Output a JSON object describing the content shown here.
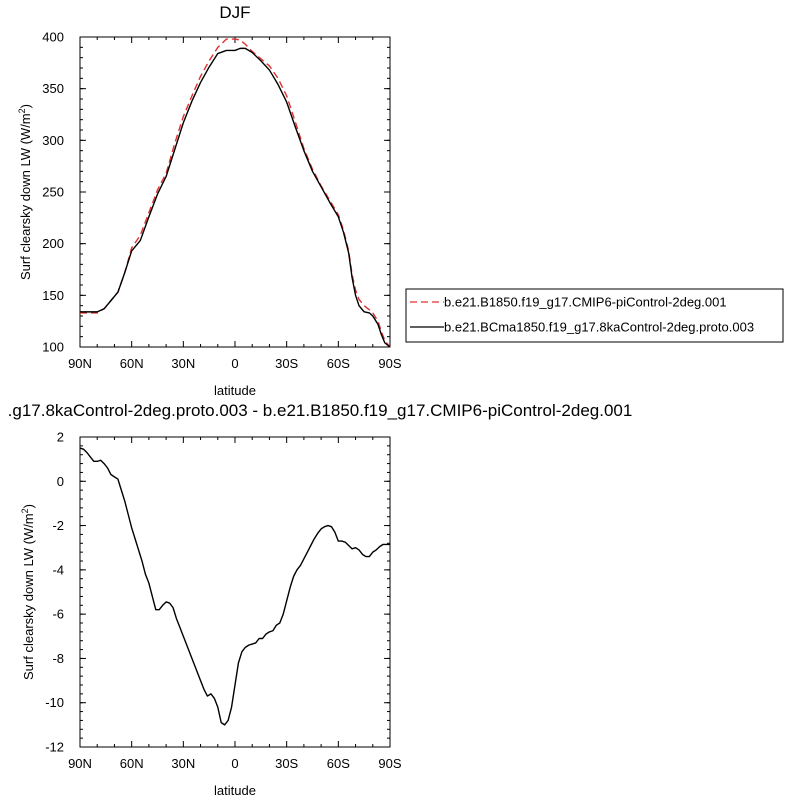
{
  "chart_data": [
    {
      "type": "line",
      "title": "DJF",
      "xlabel": "latitude",
      "ylabel": "Surf clearsky down LW (W/m²)",
      "ylabel_main": "Surf clearsky down LW (W/m",
      "ylabel_sup": "2",
      "ylabel_close": ")",
      "xlim": [
        90,
        -90
      ],
      "ylim": [
        100,
        400
      ],
      "x_ticks": [
        90,
        60,
        30,
        0,
        -30,
        -60,
        -90
      ],
      "x_tick_labels": [
        "90N",
        "60N",
        "30N",
        "0",
        "30S",
        "60S",
        "90S"
      ],
      "y_ticks": [
        100,
        150,
        200,
        250,
        300,
        350,
        400
      ],
      "y_tick_labels": [
        "100",
        "150",
        "200",
        "250",
        "300",
        "350",
        "400"
      ],
      "legend": "right",
      "series": [
        {
          "name": "b.e21.B1850.f19_g17.CMIP6-piControl-2deg.001",
          "color": "#e03030",
          "dash": "dashed",
          "x": [
            90,
            85,
            80,
            76,
            72,
            68,
            64,
            60,
            55,
            50,
            45,
            40,
            35,
            30,
            25,
            20,
            15,
            10,
            5,
            2,
            0,
            -3,
            -6,
            -10,
            -15,
            -20,
            -25,
            -30,
            -35,
            -40,
            -45,
            -50,
            -55,
            -60,
            -63,
            -66,
            -68,
            -70,
            -72,
            -75,
            -78,
            -80,
            -83,
            -85,
            -87,
            -90
          ],
          "values": [
            133,
            133,
            133,
            137,
            145,
            153,
            172,
            196,
            208,
            230,
            252,
            268,
            297,
            323,
            343,
            362,
            377,
            390,
            398,
            398,
            398,
            397,
            393,
            386,
            379,
            372,
            360,
            343,
            318,
            292,
            272,
            256,
            242,
            228,
            213,
            193,
            170,
            155,
            146,
            140,
            136,
            133,
            125,
            115,
            106,
            100
          ]
        },
        {
          "name": "b.e21.BCma1850.f19_g17.8kaControl-2deg.proto.003",
          "color": "#000000",
          "dash": "solid",
          "x": [
            90,
            85,
            80,
            76,
            72,
            68,
            64,
            60,
            55,
            50,
            45,
            40,
            35,
            30,
            25,
            20,
            15,
            10,
            5,
            2,
            0,
            -3,
            -6,
            -10,
            -15,
            -20,
            -25,
            -30,
            -35,
            -40,
            -45,
            -50,
            -55,
            -60,
            -63,
            -66,
            -68,
            -70,
            -72,
            -75,
            -78,
            -80,
            -83,
            -85,
            -87,
            -90
          ],
          "values": [
            134,
            134,
            134,
            137,
            145,
            153,
            172,
            193,
            203,
            226,
            248,
            265,
            291,
            317,
            338,
            356,
            371,
            384,
            387,
            387,
            387,
            389,
            389,
            385,
            377,
            368,
            354,
            337,
            313,
            290,
            270,
            255,
            240,
            226,
            211,
            191,
            167,
            150,
            140,
            134,
            133,
            130,
            122,
            112,
            104,
            100
          ]
        }
      ]
    },
    {
      "type": "line",
      "title": ".g17.8kaControl-2deg.proto.003 - b.e21.B1850.f19_g17.CMIP6-piControl-2deg.001",
      "xlabel": "latitude",
      "ylabel": "Surf clearsky down LW (W/m²)",
      "ylabel_main": "Surf clearsky down LW (W/m",
      "ylabel_sup": "2",
      "ylabel_close": ")",
      "xlim": [
        90,
        -90
      ],
      "ylim": [
        -12,
        2
      ],
      "x_ticks": [
        90,
        60,
        30,
        0,
        -30,
        -60,
        -90
      ],
      "x_tick_labels": [
        "90N",
        "60N",
        "30N",
        "0",
        "30S",
        "60S",
        "90S"
      ],
      "y_ticks": [
        -12,
        -10,
        -8,
        -6,
        -4,
        -2,
        0,
        2
      ],
      "y_tick_labels": [
        "-12",
        "-10",
        "-8",
        "-6",
        "-4",
        "-2",
        "0",
        "2"
      ],
      "series": [
        {
          "color": "#000000",
          "dash": "solid",
          "x": [
            90,
            88,
            86,
            84,
            82,
            80,
            78,
            76,
            74,
            72,
            70,
            68,
            66,
            64,
            62,
            60,
            58,
            56,
            54,
            52,
            50,
            48,
            46,
            44,
            42,
            40,
            38,
            36,
            34,
            32,
            30,
            28,
            26,
            24,
            22,
            20,
            18,
            16,
            14,
            12,
            10,
            8,
            6,
            4,
            2,
            0,
            -2,
            -4,
            -6,
            -8,
            -10,
            -12,
            -14,
            -16,
            -18,
            -20,
            -22,
            -24,
            -26,
            -28,
            -30,
            -32,
            -34,
            -36,
            -38,
            -40,
            -42,
            -44,
            -46,
            -48,
            -50,
            -52,
            -54,
            -56,
            -58,
            -60,
            -62,
            -64,
            -66,
            -68,
            -70,
            -72,
            -74,
            -76,
            -78,
            -80,
            -82,
            -84,
            -86,
            -88,
            -90
          ],
          "values": [
            1.5,
            1.45,
            1.3,
            1.1,
            0.9,
            0.9,
            0.95,
            0.8,
            0.6,
            0.3,
            0.2,
            0.1,
            -0.4,
            -0.9,
            -1.5,
            -2.1,
            -2.6,
            -3.1,
            -3.6,
            -4.2,
            -4.6,
            -5.2,
            -5.8,
            -5.8,
            -5.6,
            -5.45,
            -5.5,
            -5.7,
            -6.2,
            -6.6,
            -7.0,
            -7.4,
            -7.8,
            -8.2,
            -8.6,
            -9.0,
            -9.4,
            -9.7,
            -9.6,
            -9.8,
            -10.2,
            -10.9,
            -11.0,
            -10.8,
            -10.2,
            -9.2,
            -8.2,
            -7.7,
            -7.5,
            -7.4,
            -7.35,
            -7.3,
            -7.1,
            -7.1,
            -6.9,
            -6.8,
            -6.75,
            -6.5,
            -6.4,
            -6.0,
            -5.4,
            -4.8,
            -4.3,
            -4.0,
            -3.8,
            -3.5,
            -3.2,
            -2.9,
            -2.6,
            -2.35,
            -2.15,
            -2.05,
            -2.0,
            -2.05,
            -2.3,
            -2.7,
            -2.7,
            -2.75,
            -2.9,
            -3.05,
            -3.0,
            -3.1,
            -3.3,
            -3.4,
            -3.4,
            -3.2,
            -3.1,
            -2.95,
            -2.85,
            -2.85,
            -2.85
          ]
        }
      ]
    }
  ]
}
